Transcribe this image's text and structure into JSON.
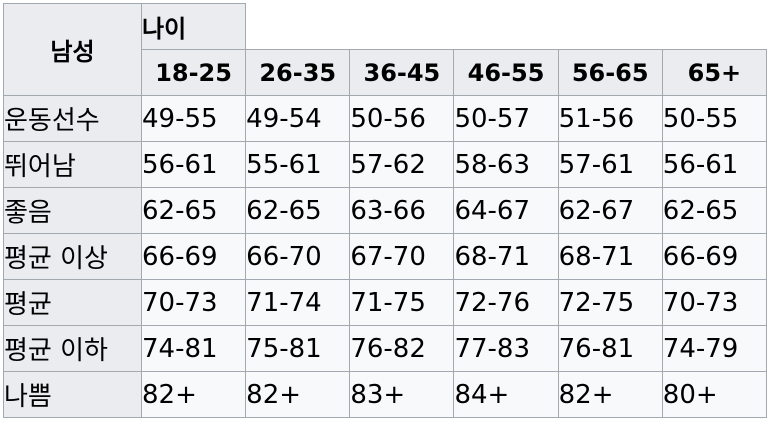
{
  "corner_label": "남성",
  "age_group_label": "나이",
  "age_ranges": [
    "18-25",
    "26-35",
    "36-45",
    "46-55",
    "56-65",
    "65+"
  ],
  "rows": [
    {
      "label": "운동선수",
      "values": [
        "49-55",
        "49-54",
        "50-56",
        "50-57",
        "51-56",
        "50-55"
      ]
    },
    {
      "label": "뛰어남",
      "values": [
        "56-61",
        "55-61",
        "57-62",
        "58-63",
        "57-61",
        "56-61"
      ]
    },
    {
      "label": "좋음",
      "values": [
        "62-65",
        "62-65",
        "63-66",
        "64-67",
        "62-67",
        "62-65"
      ]
    },
    {
      "label": "평균 이상",
      "values": [
        "66-69",
        "66-70",
        "67-70",
        "68-71",
        "68-71",
        "66-69"
      ]
    },
    {
      "label": "평균",
      "values": [
        "70-73",
        "71-74",
        "71-75",
        "72-76",
        "72-75",
        "70-73"
      ]
    },
    {
      "label": "평균 이하",
      "values": [
        "74-81",
        "75-81",
        "76-82",
        "77-83",
        "76-81",
        "74-79"
      ]
    },
    {
      "label": "나쁨",
      "values": [
        "82+",
        "82+",
        "83+",
        "84+",
        "82+",
        "80+"
      ]
    }
  ]
}
